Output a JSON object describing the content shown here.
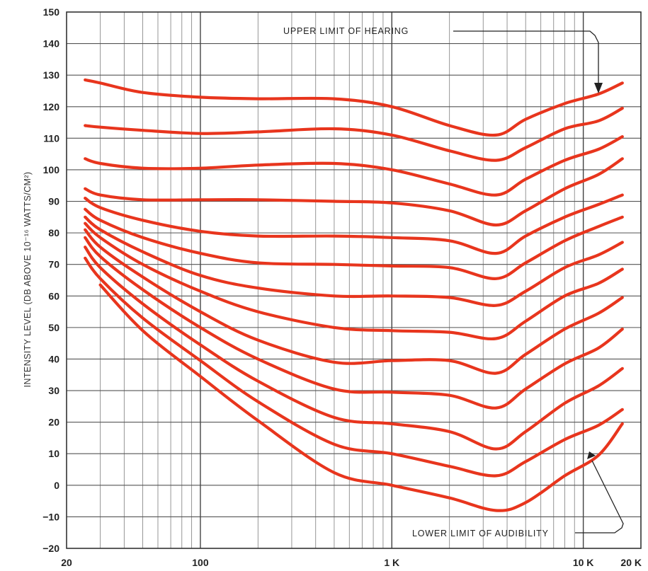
{
  "chart_data": {
    "type": "line",
    "title": "",
    "xlabel": "",
    "ylabel": "INTENSITY LEVEL (DB ABOVE 10⁻¹⁶ WATTS/CM²)",
    "x_scale": "log",
    "xlim": [
      20,
      20000
    ],
    "ylim": [
      -20,
      150
    ],
    "grid": true,
    "line_color": "#e8351d",
    "x_tick_labels": [
      {
        "value": 20,
        "label": "20"
      },
      {
        "value": 100,
        "label": "100"
      },
      {
        "value": 1000,
        "label": "1 K"
      },
      {
        "value": 10000,
        "label": "10 K"
      },
      {
        "value": 20000,
        "label": "20 K"
      }
    ],
    "y_ticks": [
      -20,
      -10,
      0,
      10,
      20,
      30,
      40,
      50,
      60,
      70,
      80,
      90,
      100,
      110,
      120,
      130,
      140,
      150
    ],
    "y_tick_labels": [
      "−20",
      "−10",
      "0",
      "10",
      "20",
      "30",
      "40",
      "50",
      "60",
      "70",
      "80",
      "90",
      "100",
      "110",
      "120",
      "130",
      "140",
      "150"
    ],
    "annotations": {
      "upper": "UPPER LIMIT OF HEARING",
      "lower": "LOWER LIMIT OF AUDIBILITY"
    },
    "x": [
      25,
      30,
      50,
      100,
      200,
      500,
      1000,
      2000,
      3500,
      5000,
      8000,
      12000,
      16000
    ],
    "series": [
      {
        "values": [
          128.5,
          127.5,
          124.5,
          123,
          122.5,
          122.5,
          120,
          114,
          111,
          116,
          121,
          124,
          127.5
        ]
      },
      {
        "values": [
          114,
          113.5,
          112.5,
          111.5,
          112,
          113,
          111,
          106,
          103,
          107,
          113,
          115.5,
          119.5
        ]
      },
      {
        "values": [
          103.5,
          102,
          100.5,
          100.5,
          101.5,
          102,
          100,
          95.5,
          92,
          97,
          103,
          106.5,
          110.5
        ]
      },
      {
        "values": [
          94,
          92,
          90.5,
          90.5,
          90.5,
          90,
          89.5,
          87,
          82.5,
          87,
          94,
          98.5,
          103.5
        ]
      },
      {
        "values": [
          91,
          88,
          84,
          80.5,
          79,
          79,
          78.5,
          77.5,
          73.5,
          79,
          85,
          89,
          92
        ]
      },
      {
        "values": [
          87.5,
          84,
          78.5,
          73.5,
          70.5,
          70,
          69.5,
          69,
          65.5,
          70.5,
          77.5,
          82,
          85
        ]
      },
      {
        "values": [
          85,
          81,
          74,
          66.5,
          62.5,
          60,
          60,
          59.5,
          57,
          61.5,
          69,
          73,
          77
        ]
      },
      {
        "values": [
          83,
          78.5,
          70,
          61.5,
          55,
          50,
          49,
          48.5,
          46.5,
          52,
          60,
          64,
          68.5
        ]
      },
      {
        "values": [
          81,
          75.5,
          66,
          55,
          46,
          39,
          39.5,
          39.5,
          35.5,
          41.5,
          49.5,
          54.5,
          59.5
        ]
      },
      {
        "values": [
          78.5,
          72.5,
          62,
          50,
          40,
          30.5,
          29.5,
          28.5,
          24.5,
          30.5,
          38.5,
          43.5,
          49.5
        ]
      },
      {
        "values": [
          75.5,
          69,
          57.5,
          44.5,
          33,
          21.5,
          19.5,
          17,
          11.5,
          17,
          26,
          31.5,
          37
        ]
      },
      {
        "values": [
          72,
          65.5,
          53,
          39.5,
          26.5,
          13,
          10,
          6,
          3,
          7.5,
          14.5,
          19,
          24
        ]
      },
      {
        "values": [
          null,
          63.5,
          49,
          34.5,
          20.5,
          4,
          0,
          -4,
          -8,
          -5.5,
          3,
          9.5,
          19.5
        ]
      }
    ]
  }
}
